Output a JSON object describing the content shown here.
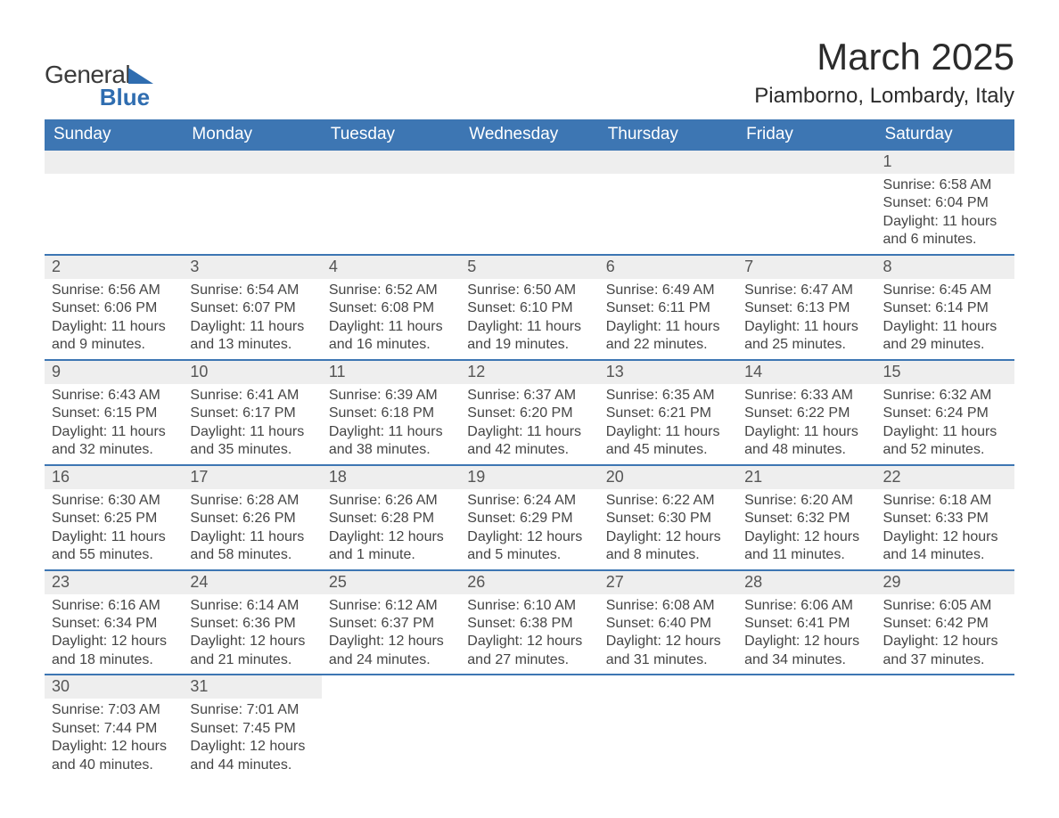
{
  "brand": {
    "word1": "General",
    "word2": "Blue"
  },
  "header": {
    "month_title": "March 2025",
    "location": "Piamborno, Lombardy, Italy"
  },
  "style": {
    "header_bg": "#3d76b3",
    "header_text": "#ffffff",
    "daynum_bg": "#eeeeee",
    "row_divider": "#3d76b3",
    "body_text": "#454545",
    "brand_blue": "#2f6db0",
    "page_bg": "#ffffff",
    "title_fontsize_pt": 42,
    "location_fontsize_pt": 24,
    "th_fontsize_pt": 19,
    "cell_fontsize_pt": 16
  },
  "calendar": {
    "type": "table",
    "columns": [
      "Sunday",
      "Monday",
      "Tuesday",
      "Wednesday",
      "Thursday",
      "Friday",
      "Saturday"
    ],
    "weeks": [
      [
        null,
        null,
        null,
        null,
        null,
        null,
        {
          "day": "1",
          "sunrise": "6:58 AM",
          "sunset": "6:04 PM",
          "daylight": "11 hours and 6 minutes."
        }
      ],
      [
        {
          "day": "2",
          "sunrise": "6:56 AM",
          "sunset": "6:06 PM",
          "daylight": "11 hours and 9 minutes."
        },
        {
          "day": "3",
          "sunrise": "6:54 AM",
          "sunset": "6:07 PM",
          "daylight": "11 hours and 13 minutes."
        },
        {
          "day": "4",
          "sunrise": "6:52 AM",
          "sunset": "6:08 PM",
          "daylight": "11 hours and 16 minutes."
        },
        {
          "day": "5",
          "sunrise": "6:50 AM",
          "sunset": "6:10 PM",
          "daylight": "11 hours and 19 minutes."
        },
        {
          "day": "6",
          "sunrise": "6:49 AM",
          "sunset": "6:11 PM",
          "daylight": "11 hours and 22 minutes."
        },
        {
          "day": "7",
          "sunrise": "6:47 AM",
          "sunset": "6:13 PM",
          "daylight": "11 hours and 25 minutes."
        },
        {
          "day": "8",
          "sunrise": "6:45 AM",
          "sunset": "6:14 PM",
          "daylight": "11 hours and 29 minutes."
        }
      ],
      [
        {
          "day": "9",
          "sunrise": "6:43 AM",
          "sunset": "6:15 PM",
          "daylight": "11 hours and 32 minutes."
        },
        {
          "day": "10",
          "sunrise": "6:41 AM",
          "sunset": "6:17 PM",
          "daylight": "11 hours and 35 minutes."
        },
        {
          "day": "11",
          "sunrise": "6:39 AM",
          "sunset": "6:18 PM",
          "daylight": "11 hours and 38 minutes."
        },
        {
          "day": "12",
          "sunrise": "6:37 AM",
          "sunset": "6:20 PM",
          "daylight": "11 hours and 42 minutes."
        },
        {
          "day": "13",
          "sunrise": "6:35 AM",
          "sunset": "6:21 PM",
          "daylight": "11 hours and 45 minutes."
        },
        {
          "day": "14",
          "sunrise": "6:33 AM",
          "sunset": "6:22 PM",
          "daylight": "11 hours and 48 minutes."
        },
        {
          "day": "15",
          "sunrise": "6:32 AM",
          "sunset": "6:24 PM",
          "daylight": "11 hours and 52 minutes."
        }
      ],
      [
        {
          "day": "16",
          "sunrise": "6:30 AM",
          "sunset": "6:25 PM",
          "daylight": "11 hours and 55 minutes."
        },
        {
          "day": "17",
          "sunrise": "6:28 AM",
          "sunset": "6:26 PM",
          "daylight": "11 hours and 58 minutes."
        },
        {
          "day": "18",
          "sunrise": "6:26 AM",
          "sunset": "6:28 PM",
          "daylight": "12 hours and 1 minute."
        },
        {
          "day": "19",
          "sunrise": "6:24 AM",
          "sunset": "6:29 PM",
          "daylight": "12 hours and 5 minutes."
        },
        {
          "day": "20",
          "sunrise": "6:22 AM",
          "sunset": "6:30 PM",
          "daylight": "12 hours and 8 minutes."
        },
        {
          "day": "21",
          "sunrise": "6:20 AM",
          "sunset": "6:32 PM",
          "daylight": "12 hours and 11 minutes."
        },
        {
          "day": "22",
          "sunrise": "6:18 AM",
          "sunset": "6:33 PM",
          "daylight": "12 hours and 14 minutes."
        }
      ],
      [
        {
          "day": "23",
          "sunrise": "6:16 AM",
          "sunset": "6:34 PM",
          "daylight": "12 hours and 18 minutes."
        },
        {
          "day": "24",
          "sunrise": "6:14 AM",
          "sunset": "6:36 PM",
          "daylight": "12 hours and 21 minutes."
        },
        {
          "day": "25",
          "sunrise": "6:12 AM",
          "sunset": "6:37 PM",
          "daylight": "12 hours and 24 minutes."
        },
        {
          "day": "26",
          "sunrise": "6:10 AM",
          "sunset": "6:38 PM",
          "daylight": "12 hours and 27 minutes."
        },
        {
          "day": "27",
          "sunrise": "6:08 AM",
          "sunset": "6:40 PM",
          "daylight": "12 hours and 31 minutes."
        },
        {
          "day": "28",
          "sunrise": "6:06 AM",
          "sunset": "6:41 PM",
          "daylight": "12 hours and 34 minutes."
        },
        {
          "day": "29",
          "sunrise": "6:05 AM",
          "sunset": "6:42 PM",
          "daylight": "12 hours and 37 minutes."
        }
      ],
      [
        {
          "day": "30",
          "sunrise": "7:03 AM",
          "sunset": "7:44 PM",
          "daylight": "12 hours and 40 minutes."
        },
        {
          "day": "31",
          "sunrise": "7:01 AM",
          "sunset": "7:45 PM",
          "daylight": "12 hours and 44 minutes."
        },
        null,
        null,
        null,
        null,
        null
      ]
    ],
    "labels": {
      "sunrise": "Sunrise: ",
      "sunset": "Sunset: ",
      "daylight": "Daylight: "
    }
  }
}
